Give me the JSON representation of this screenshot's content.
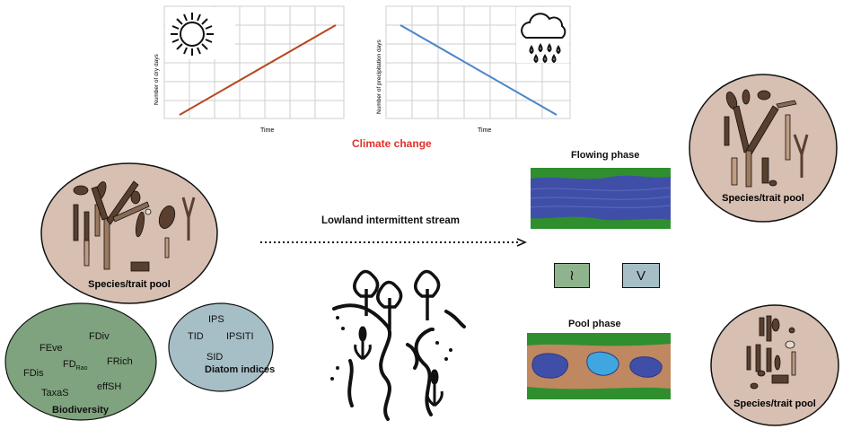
{
  "top_charts": [
    {
      "ylabel": "Number of dry days",
      "xlabel": "Time",
      "icon": "sun-icon",
      "line_color": "#b5471f",
      "trend": "increasing"
    },
    {
      "ylabel": "Number of precipitation days",
      "xlabel": "Time",
      "icon": "rain-cloud-icon",
      "line_color": "#4a86c8",
      "trend": "decreasing"
    }
  ],
  "climate_change_label": "Climate change",
  "climate_change_color": "#e0312a",
  "stream_label": "Lowland intermittent stream",
  "flowing_phase_label": "Flowing phase",
  "pool_phase_label": "Pool phase",
  "species_pool_labels": [
    "Species/trait pool",
    "Species/trait pool",
    "Species/trait pool"
  ],
  "comparison_symbols": [
    "≀",
    "V"
  ],
  "biodiversity": {
    "title": "Biodiversity",
    "metrics": [
      "FEve",
      "FDiv",
      "FD",
      "Rao",
      "FDis",
      "FRich",
      "TaxaS",
      "effSH"
    ]
  },
  "diatom_indices": {
    "title": "Diatom indices",
    "metrics": [
      "IPS",
      "TID",
      "IPSITI",
      "SID"
    ]
  },
  "colors": {
    "species_circle": "#d7bfb2",
    "biodiversity_circle": "#7fa37e",
    "diatom_circle": "#a6bec6",
    "water_blue": "#3f4fa8",
    "pool_light_blue": "#3fa6e0",
    "sediment_brown": "#c08860",
    "grass_green": "#2f8f2f",
    "diatom_dark": "#5a3e2e"
  }
}
